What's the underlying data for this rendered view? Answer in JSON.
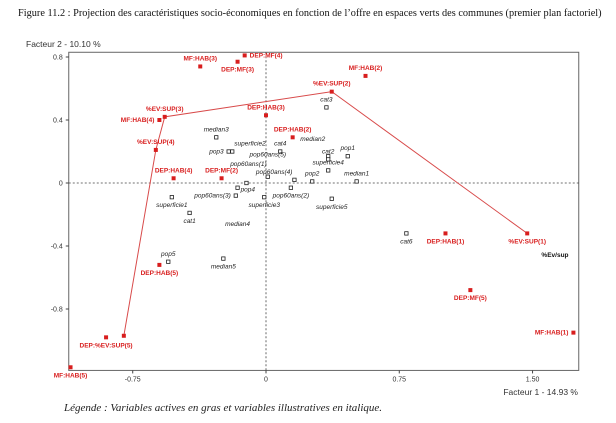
{
  "title": "Figure 11.2 : Projection des caractéristiques socio-économiques en fonction de l’offre en espaces verts des communes (premier plan factoriel)",
  "legend_note": "Légende : Variables actives en gras et variables illustratives en italique.",
  "chart_data": {
    "type": "scatter",
    "xlabel": "Facteur 1  -  14.93 %",
    "ylabel": "Facteur 2  -  10.10 %",
    "xlim": [
      -1.11,
      1.76
    ],
    "ylim": [
      -1.19,
      0.83
    ],
    "xticks": [
      {
        "v": -0.75,
        "l": "-0.75"
      },
      {
        "v": 0,
        "l": "0"
      },
      {
        "v": 0.75,
        "l": "0.75"
      },
      {
        "v": 1.5,
        "l": "1.50"
      }
    ],
    "yticks": [
      {
        "v": 0.8,
        "l": "0.8"
      },
      {
        "v": 0.4,
        "l": "0.4"
      },
      {
        "v": 0,
        "l": "0"
      },
      {
        "v": -0.4,
        "l": "-0.4"
      },
      {
        "v": -0.8,
        "l": "-0.8"
      }
    ],
    "colors": {
      "active": "#d81e1e",
      "illustrative": "#222222",
      "trajectory": "#d84a4a"
    },
    "active": [
      {
        "label": "DEP:MF(4)",
        "x": -0.12,
        "y": 0.81,
        "pos": "right"
      },
      {
        "label": "MF:HAB(3)",
        "x": -0.37,
        "y": 0.74,
        "pos": "above"
      },
      {
        "label": "DEP:MF(3)",
        "x": -0.16,
        "y": 0.77,
        "pos": "below"
      },
      {
        "label": "MF:HAB(2)",
        "x": 0.56,
        "y": 0.68,
        "pos": "above"
      },
      {
        "label": "%EV:SUP(2)",
        "x": 0.37,
        "y": 0.58,
        "pos": "above"
      },
      {
        "label": "%EV:SUP(3)",
        "x": -0.57,
        "y": 0.42,
        "pos": "above"
      },
      {
        "label": "MF:HAB(4)",
        "x": -0.6,
        "y": 0.4,
        "pos": "left"
      },
      {
        "label": "DEP:HAB(3)",
        "x": 0.0,
        "y": 0.43,
        "pos": "above"
      },
      {
        "label": "DEP:HAB(2)",
        "x": 0.15,
        "y": 0.29,
        "pos": "above"
      },
      {
        "label": "%EV:SUP(4)",
        "x": -0.62,
        "y": 0.21,
        "pos": "above"
      },
      {
        "label": "DEP:HAB(4)",
        "x": -0.52,
        "y": 0.03,
        "pos": "above"
      },
      {
        "label": "DEP:MF(2)",
        "x": -0.25,
        "y": 0.03,
        "pos": "above"
      },
      {
        "label": "DEP:HAB(5)",
        "x": -0.6,
        "y": -0.52,
        "pos": "below"
      },
      {
        "label": "DEP:%EV:SUP(5)",
        "x": -0.9,
        "y": -0.98,
        "pos": "below"
      },
      {
        "label": "",
        "x": -0.8,
        "y": -0.97,
        "pos": "below"
      },
      {
        "label": "MF:HAB(5)",
        "x": -1.1,
        "y": -1.17,
        "pos": "below"
      },
      {
        "label": "DEP:HAB(1)",
        "x": 1.01,
        "y": -0.32,
        "pos": "below"
      },
      {
        "label": "%EV:SUP(1)",
        "x": 1.47,
        "y": -0.32,
        "pos": "below"
      },
      {
        "label": "DEP:MF(5)",
        "x": 1.15,
        "y": -0.68,
        "pos": "below"
      },
      {
        "label": "MF:HAB(1)",
        "x": 1.73,
        "y": -0.95,
        "pos": "left"
      }
    ],
    "trajectory": [
      [
        1.47,
        -0.32
      ],
      [
        0.37,
        0.58
      ],
      [
        -0.57,
        0.42
      ],
      [
        -0.62,
        0.21
      ],
      [
        -0.8,
        -0.97
      ]
    ],
    "illustrative": [
      {
        "label": "cat3",
        "x": 0.34,
        "y": 0.48,
        "pos": "above"
      },
      {
        "label": "median3",
        "x": -0.28,
        "y": 0.29,
        "pos": "above"
      },
      {
        "label": "superficie2",
        "x": -0.19,
        "y": 0.2,
        "pos": "aboveright"
      },
      {
        "label": "pop3",
        "x": -0.21,
        "y": 0.2,
        "pos": "left"
      },
      {
        "label": "cat4",
        "x": 0.08,
        "y": 0.2,
        "pos": "above"
      },
      {
        "label": "median2",
        "x": 0.35,
        "y": 0.17,
        "pos": "aboveright"
      },
      {
        "label": "cat2",
        "x": 0.35,
        "y": 0.15,
        "pos": "above"
      },
      {
        "label": "pop1",
        "x": 0.46,
        "y": 0.17,
        "pos": "above"
      },
      {
        "label": "pop60ans(5)",
        "x": 0.01,
        "y": 0.04,
        "pos": "above"
      },
      {
        "label": "pop60ans(1)",
        "x": -0.11,
        "y": 0.0,
        "pos": "aboveleft"
      },
      {
        "label": "pop60ans(4)",
        "x": 0.16,
        "y": 0.02,
        "pos": "above"
      },
      {
        "label": "superficie4",
        "x": 0.35,
        "y": 0.08,
        "pos": "above"
      },
      {
        "label": "pop2",
        "x": 0.26,
        "y": 0.01,
        "pos": "above"
      },
      {
        "label": "median1",
        "x": 0.51,
        "y": 0.01,
        "pos": "above"
      },
      {
        "label": "pop60ans(2)",
        "x": 0.14,
        "y": -0.03,
        "pos": "below"
      },
      {
        "label": "pop4",
        "x": -0.16,
        "y": -0.03,
        "pos": "belowright"
      },
      {
        "label": "superficie5",
        "x": 0.37,
        "y": -0.1,
        "pos": "below"
      },
      {
        "label": "superficie3",
        "x": -0.01,
        "y": -0.09,
        "pos": "below"
      },
      {
        "label": "pop60ans(3)",
        "x": -0.17,
        "y": -0.08,
        "pos": "left"
      },
      {
        "label": "superficie1",
        "x": -0.53,
        "y": -0.09,
        "pos": "below"
      },
      {
        "label": "cat1",
        "x": -0.43,
        "y": -0.19,
        "pos": "below"
      },
      {
        "label": "median4",
        "x": -0.16,
        "y": -0.26,
        "pos": "none"
      },
      {
        "label": "pop5",
        "x": -0.55,
        "y": -0.5,
        "pos": "above"
      },
      {
        "label": "median5",
        "x": -0.24,
        "y": -0.48,
        "pos": "below"
      },
      {
        "label": "cat6",
        "x": 0.79,
        "y": -0.32,
        "pos": "below"
      }
    ],
    "annotation": {
      "label": "%Ev/sup",
      "x": 1.55,
      "y": -0.47
    }
  }
}
